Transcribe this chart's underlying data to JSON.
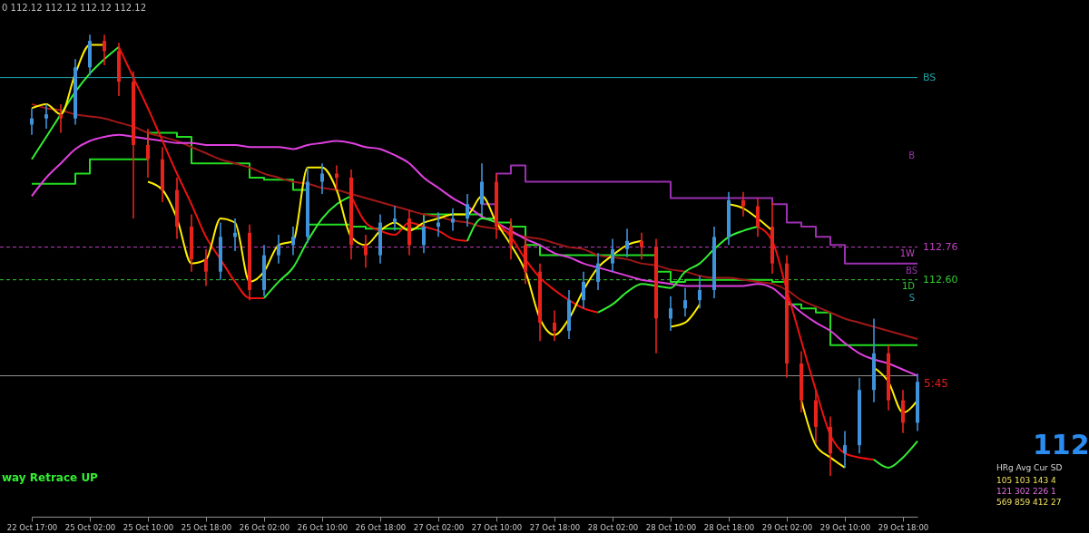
{
  "chart_data": {
    "type": "candlestick",
    "categories": [
      "22 Oct 17:00",
      null,
      null,
      null,
      "25 Oct 02:00",
      null,
      null,
      null,
      "25 Oct 10:00",
      null,
      null,
      null,
      "25 Oct 18:00",
      null,
      null,
      null,
      "26 Oct 02:00",
      null,
      null,
      null,
      "26 Oct 10:00",
      null,
      null,
      null,
      "26 Oct 18:00",
      null,
      null,
      null,
      "27 Oct 02:00",
      null,
      null,
      null,
      "27 Oct 10:00",
      null,
      null,
      null,
      "27 Oct 18:00",
      null,
      null,
      null,
      "28 Oct 02:00",
      null,
      null,
      null,
      "28 Oct 10:00",
      null,
      null,
      null,
      "28 Oct 18:00",
      null,
      null,
      null,
      "29 Oct 02:00",
      null,
      null,
      null,
      "29 Oct 10:00",
      null,
      null,
      null,
      "29 Oct 18:00",
      null
    ],
    "ohlc": [
      [
        113.36,
        113.44,
        113.31,
        113.39
      ],
      [
        113.39,
        113.46,
        113.34,
        113.41
      ],
      [
        113.41,
        113.46,
        113.32,
        113.39
      ],
      [
        113.39,
        113.68,
        113.36,
        113.64
      ],
      [
        113.64,
        113.8,
        113.6,
        113.77
      ],
      [
        113.77,
        113.8,
        113.65,
        113.72
      ],
      [
        113.72,
        113.76,
        113.5,
        113.57
      ],
      [
        113.57,
        113.62,
        112.9,
        113.26
      ],
      [
        113.26,
        113.34,
        113.1,
        113.19
      ],
      [
        113.19,
        113.25,
        112.98,
        113.04
      ],
      [
        113.04,
        113.1,
        112.8,
        112.86
      ],
      [
        112.86,
        112.92,
        112.64,
        112.7
      ],
      [
        112.7,
        112.75,
        112.57,
        112.64
      ],
      [
        112.64,
        112.88,
        112.6,
        112.81
      ],
      [
        112.81,
        112.9,
        112.74,
        112.83
      ],
      [
        112.83,
        112.87,
        112.5,
        112.55
      ],
      [
        112.55,
        112.77,
        112.52,
        112.72
      ],
      [
        112.72,
        112.82,
        112.68,
        112.77
      ],
      [
        112.77,
        112.86,
        112.72,
        112.81
      ],
      [
        112.81,
        113.15,
        112.78,
        113.08
      ],
      [
        113.08,
        113.17,
        113.02,
        113.12
      ],
      [
        113.12,
        113.16,
        113.04,
        113.1
      ],
      [
        113.1,
        113.14,
        112.7,
        112.77
      ],
      [
        112.77,
        112.82,
        112.66,
        112.72
      ],
      [
        112.72,
        112.92,
        112.68,
        112.88
      ],
      [
        112.88,
        112.96,
        112.84,
        112.9
      ],
      [
        112.9,
        112.94,
        112.72,
        112.77
      ],
      [
        112.77,
        112.91,
        112.73,
        112.86
      ],
      [
        112.86,
        112.93,
        112.81,
        112.88
      ],
      [
        112.88,
        112.95,
        112.84,
        112.9
      ],
      [
        112.9,
        113.02,
        112.86,
        112.97
      ],
      [
        112.97,
        113.17,
        112.92,
        113.08
      ],
      [
        113.08,
        113.12,
        112.8,
        112.86
      ],
      [
        112.86,
        112.9,
        112.7,
        112.77
      ],
      [
        112.77,
        112.81,
        112.58,
        112.64
      ],
      [
        112.64,
        112.68,
        112.3,
        112.39
      ],
      [
        112.39,
        112.45,
        112.3,
        112.35
      ],
      [
        112.35,
        112.55,
        112.31,
        112.5
      ],
      [
        112.5,
        112.64,
        112.46,
        112.59
      ],
      [
        112.59,
        112.73,
        112.55,
        112.68
      ],
      [
        112.68,
        112.8,
        112.64,
        112.75
      ],
      [
        112.75,
        112.85,
        112.71,
        112.79
      ],
      [
        112.79,
        112.83,
        112.7,
        112.76
      ],
      [
        112.76,
        112.8,
        112.24,
        112.41
      ],
      [
        112.41,
        112.52,
        112.35,
        112.46
      ],
      [
        112.46,
        112.56,
        112.42,
        112.5
      ],
      [
        112.5,
        112.62,
        112.46,
        112.55
      ],
      [
        112.55,
        112.86,
        112.51,
        112.81
      ],
      [
        112.81,
        113.03,
        112.77,
        112.99
      ],
      [
        112.99,
        113.03,
        112.91,
        112.96
      ],
      [
        112.96,
        113.0,
        112.81,
        112.86
      ],
      [
        112.86,
        112.98,
        112.63,
        112.68
      ],
      [
        112.68,
        112.72,
        112.12,
        112.19
      ],
      [
        112.19,
        112.25,
        111.95,
        112.01
      ],
      [
        112.01,
        112.06,
        111.8,
        111.88
      ],
      [
        111.88,
        111.93,
        111.64,
        111.75
      ],
      [
        111.75,
        111.86,
        111.68,
        111.79
      ],
      [
        111.79,
        112.12,
        111.75,
        112.06
      ],
      [
        112.06,
        112.41,
        112.0,
        112.24
      ],
      [
        112.24,
        112.28,
        111.96,
        112.01
      ],
      [
        112.01,
        112.06,
        111.85,
        111.9
      ],
      [
        111.9,
        112.14,
        111.86,
        112.1
      ]
    ],
    "series": [
      {
        "type": "step",
        "color": "#22dd22",
        "values": [
          113.07,
          113.07,
          113.07,
          113.12,
          113.19,
          113.19,
          113.19,
          113.19,
          113.32,
          113.32,
          113.3,
          113.17,
          113.17,
          113.17,
          113.17,
          113.1,
          113.09,
          113.09,
          113.04,
          112.87,
          112.87,
          112.87,
          112.86,
          112.85,
          112.85,
          112.85,
          112.85,
          112.92,
          112.92,
          112.92,
          112.92,
          112.9,
          112.88,
          112.86,
          112.77,
          112.72,
          112.72,
          112.72,
          112.72,
          112.72,
          112.72,
          112.72,
          112.72,
          112.64,
          112.59,
          112.6,
          112.6,
          112.6,
          112.6,
          112.6,
          112.6,
          112.59,
          112.48,
          112.46,
          112.44,
          112.28,
          112.28,
          112.28,
          112.28,
          112.28,
          112.28,
          112.28
        ]
      },
      {
        "type": "step",
        "name": "BS",
        "color": "#9b30b0",
        "values": [
          null,
          null,
          null,
          null,
          null,
          null,
          null,
          null,
          null,
          null,
          null,
          null,
          null,
          null,
          null,
          null,
          null,
          null,
          null,
          null,
          null,
          null,
          null,
          null,
          null,
          null,
          null,
          null,
          null,
          null,
          null,
          112.97,
          113.12,
          113.16,
          113.08,
          113.08,
          113.08,
          113.08,
          113.08,
          113.08,
          113.08,
          113.08,
          113.08,
          113.08,
          113.0,
          113.0,
          113.0,
          113.0,
          113.0,
          113.0,
          113.0,
          112.97,
          112.88,
          112.86,
          112.81,
          112.77,
          112.68,
          112.68,
          112.68,
          112.68,
          112.68,
          112.68
        ]
      },
      {
        "type": "line",
        "color": "#a01818",
        "values": [
          113.46,
          113.44,
          113.43,
          113.41,
          113.4,
          113.39,
          113.37,
          113.35,
          113.32,
          113.3,
          113.28,
          113.25,
          113.22,
          113.19,
          113.17,
          113.15,
          113.12,
          113.1,
          113.08,
          113.07,
          113.05,
          113.04,
          113.02,
          113.0,
          112.98,
          112.96,
          112.94,
          112.92,
          112.91,
          112.89,
          112.88,
          112.86,
          112.85,
          112.83,
          112.81,
          112.8,
          112.78,
          112.76,
          112.75,
          112.72,
          112.71,
          112.7,
          112.68,
          112.67,
          112.65,
          112.64,
          112.62,
          112.61,
          112.61,
          112.6,
          112.59,
          112.58,
          112.55,
          112.5,
          112.47,
          112.44,
          112.41,
          112.39,
          112.37,
          112.35,
          112.33,
          112.31
        ]
      },
      {
        "type": "line",
        "color": "#e040e0",
        "values": [
          113.01,
          113.1,
          113.17,
          113.24,
          113.28,
          113.3,
          113.31,
          113.3,
          113.29,
          113.28,
          113.27,
          113.27,
          113.26,
          113.26,
          113.26,
          113.25,
          113.25,
          113.25,
          113.24,
          113.26,
          113.27,
          113.28,
          113.27,
          113.25,
          113.24,
          113.21,
          113.17,
          113.1,
          113.05,
          113.0,
          112.96,
          112.91,
          112.88,
          112.84,
          112.8,
          112.77,
          112.73,
          112.71,
          112.68,
          112.66,
          112.64,
          112.62,
          112.6,
          112.59,
          112.58,
          112.57,
          112.57,
          112.57,
          112.57,
          112.57,
          112.58,
          112.56,
          112.5,
          112.44,
          112.39,
          112.35,
          112.29,
          112.24,
          112.21,
          112.19,
          112.16,
          112.13
        ]
      },
      {
        "type": "line",
        "color": "#ee1111",
        "values": [
          null,
          null,
          null,
          null,
          null,
          null,
          113.74,
          113.59,
          113.44,
          113.28,
          113.12,
          112.97,
          112.81,
          112.7,
          112.59,
          112.51,
          112.51,
          null,
          null,
          null,
          null,
          null,
          113.01,
          112.88,
          112.84,
          112.82,
          112.88,
          112.86,
          112.84,
          112.8,
          112.79,
          null,
          112.88,
          112.81,
          112.7,
          112.61,
          112.55,
          112.5,
          112.46,
          112.44,
          null,
          null,
          null,
          null,
          null,
          null,
          null,
          null,
          null,
          null,
          112.86,
          112.79,
          112.55,
          112.3,
          112.06,
          111.84,
          111.75,
          111.73,
          111.72,
          null,
          null,
          null
        ]
      },
      {
        "type": "line",
        "color": "#33ee33",
        "values": [
          113.19,
          113.3,
          113.41,
          113.52,
          113.61,
          113.68,
          113.74,
          null,
          null,
          null,
          null,
          null,
          null,
          null,
          null,
          null,
          112.51,
          112.59,
          112.66,
          112.79,
          112.9,
          112.97,
          113.01,
          null,
          null,
          null,
          null,
          null,
          null,
          null,
          112.79,
          112.9,
          112.88,
          null,
          null,
          null,
          null,
          null,
          null,
          112.44,
          112.48,
          112.54,
          112.58,
          112.57,
          112.56,
          112.64,
          112.68,
          112.75,
          112.81,
          112.84,
          112.86,
          null,
          null,
          null,
          null,
          null,
          null,
          null,
          111.72,
          111.68,
          111.73,
          111.81
        ]
      },
      {
        "type": "line",
        "color": "#ffee00",
        "values": [
          113.44,
          113.46,
          113.41,
          113.61,
          113.75,
          113.75,
          null,
          null,
          113.08,
          113.04,
          112.9,
          112.68,
          112.7,
          112.9,
          112.88,
          112.59,
          112.64,
          112.77,
          112.79,
          113.15,
          113.15,
          113.04,
          112.81,
          112.77,
          112.84,
          112.88,
          112.84,
          112.88,
          112.9,
          112.92,
          112.92,
          113.01,
          112.88,
          112.77,
          112.64,
          112.41,
          112.33,
          112.41,
          112.55,
          112.66,
          112.72,
          112.77,
          112.79,
          null,
          112.37,
          112.39,
          112.48,
          null,
          112.97,
          112.95,
          112.9,
          112.84,
          null,
          112.01,
          111.79,
          111.73,
          111.68,
          null,
          112.17,
          112.1,
          111.95,
          112.01
        ]
      }
    ],
    "ylim": [
      111.44,
      113.97
    ],
    "ref_lines": [
      {
        "axis": "y",
        "value": 113.59,
        "label": "BS",
        "color": "#20a0a8"
      },
      {
        "axis": "y",
        "value": 112.76,
        "label": "112.76",
        "color": "#c040c0",
        "line_style": "dashed"
      },
      {
        "axis": "y",
        "value": 112.6,
        "label": "112.60",
        "color": "#33cc33",
        "line_style": "dashed"
      },
      {
        "axis": "y",
        "value": 112.13,
        "color": "#909090"
      }
    ],
    "annotations": [
      "0 112.12 112.12 112.12 112.12",
      "way Retrace UP",
      "112",
      "HRg  Avg  Cur  SD",
      "105  103  143  4",
      "121  302  226  1",
      "569  859  412  27",
      "B",
      "1W",
      "1D",
      "S",
      "5:45"
    ]
  }
}
